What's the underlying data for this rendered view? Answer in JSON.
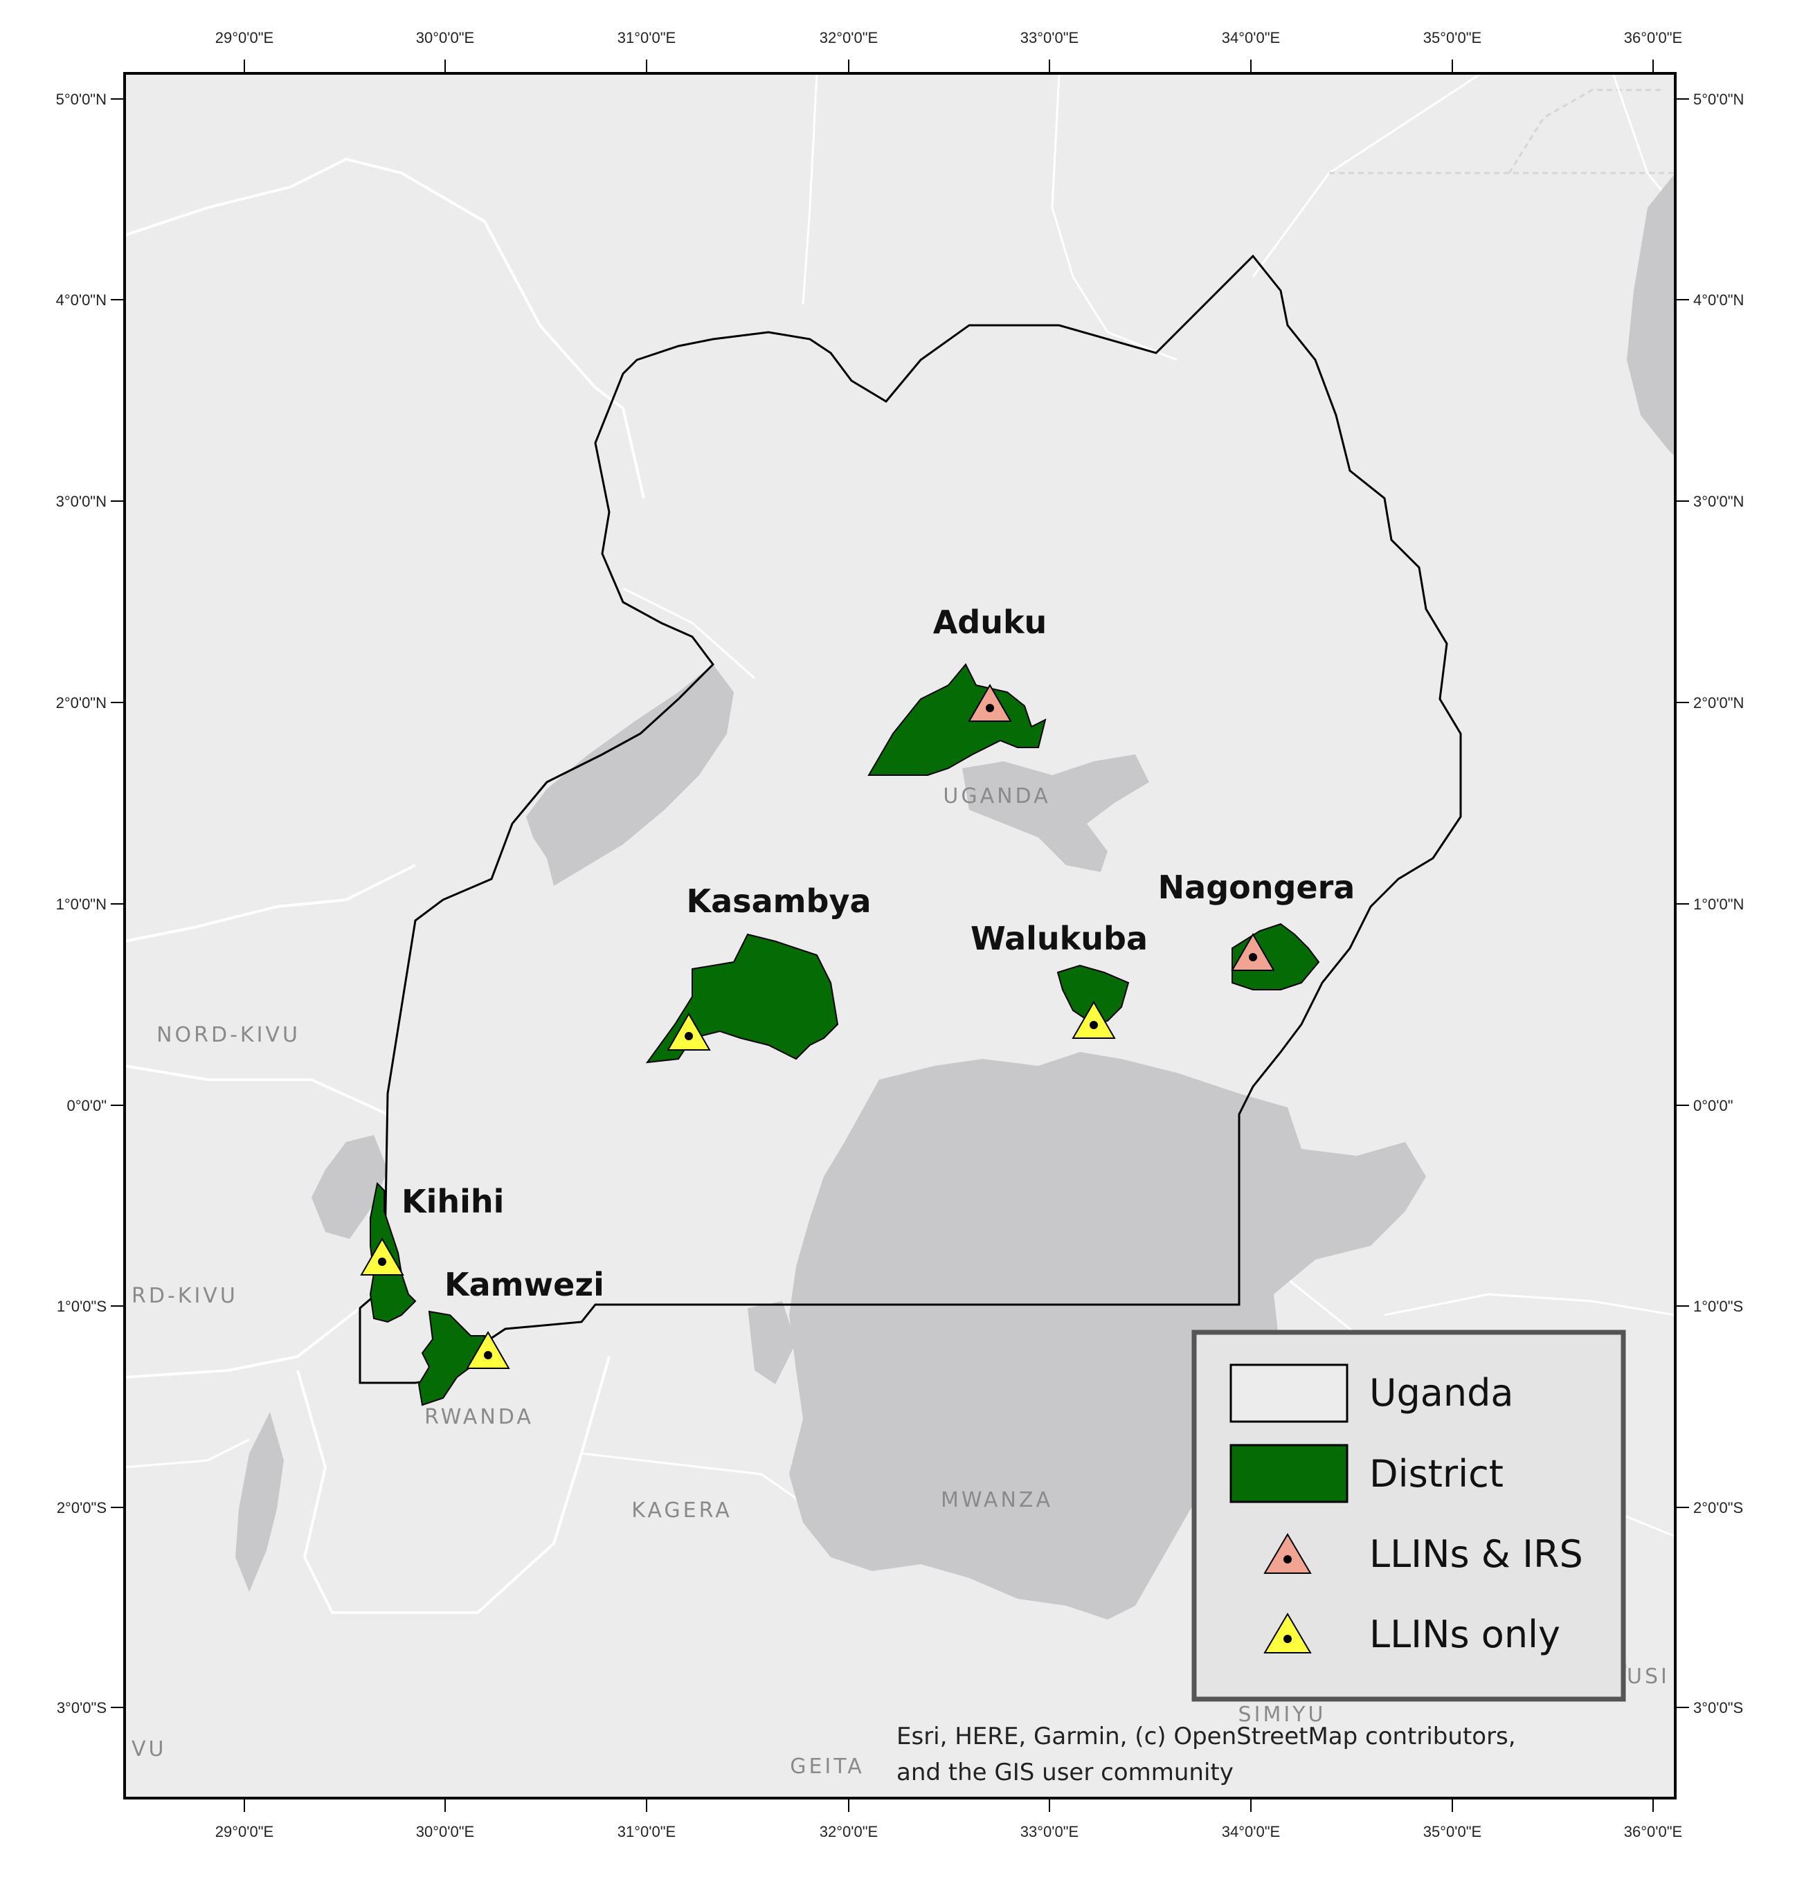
{
  "map": {
    "longitude_ticks": [
      "29°0'0\"E",
      "30°0'0\"E",
      "31°0'0\"E",
      "32°0'0\"E",
      "33°0'0\"E",
      "34°0'0\"E",
      "35°0'0\"E",
      "36°0'0\"E"
    ],
    "latitude_ticks": [
      "5°0'0\"N",
      "4°0'0\"N",
      "3°0'0\"N",
      "2°0'0\"N",
      "1°0'0\"N",
      "0°0'0\"",
      "1°0'0\"S",
      "2°0'0\"S",
      "3°0'0\"S"
    ],
    "sites": [
      {
        "name": "Aduku",
        "intervention": "LLINs & IRS"
      },
      {
        "name": "Kasambya",
        "intervention": "LLINs only"
      },
      {
        "name": "Walukuba",
        "intervention": "LLINs only"
      },
      {
        "name": "Nagongera",
        "intervention": "LLINs & IRS"
      },
      {
        "name": "Kihihi",
        "intervention": "LLINs only"
      },
      {
        "name": "Kamwezi",
        "intervention": "LLINs only"
      }
    ],
    "basemap_labels": {
      "uganda": "UGANDA",
      "nord_kivu": "NORD-KIVU",
      "sud_kivu": "RD-KIVU",
      "rwanda": "RWANDA",
      "kagera": "KAGERA",
      "mwanza": "MWANZA",
      "simiyu": "SIMIYU",
      "geita": "GEITA",
      "kivu_edge": "VU",
      "right_edge": "USI"
    },
    "legend": {
      "uganda": "Uganda",
      "district": "District",
      "llins_irs": "LLINs & IRS",
      "llins_only": "LLINs only"
    },
    "credit_line1": "Esri, HERE, Garmin, (c) OpenStreetMap contributors,",
    "credit_line2": "and the GIS user community",
    "colors": {
      "background": "#ececec",
      "water": "#c8c8ca",
      "district_fill": "#056b05",
      "llins_irs_marker": "#f2a492",
      "llins_only_marker": "#ffff40"
    }
  }
}
